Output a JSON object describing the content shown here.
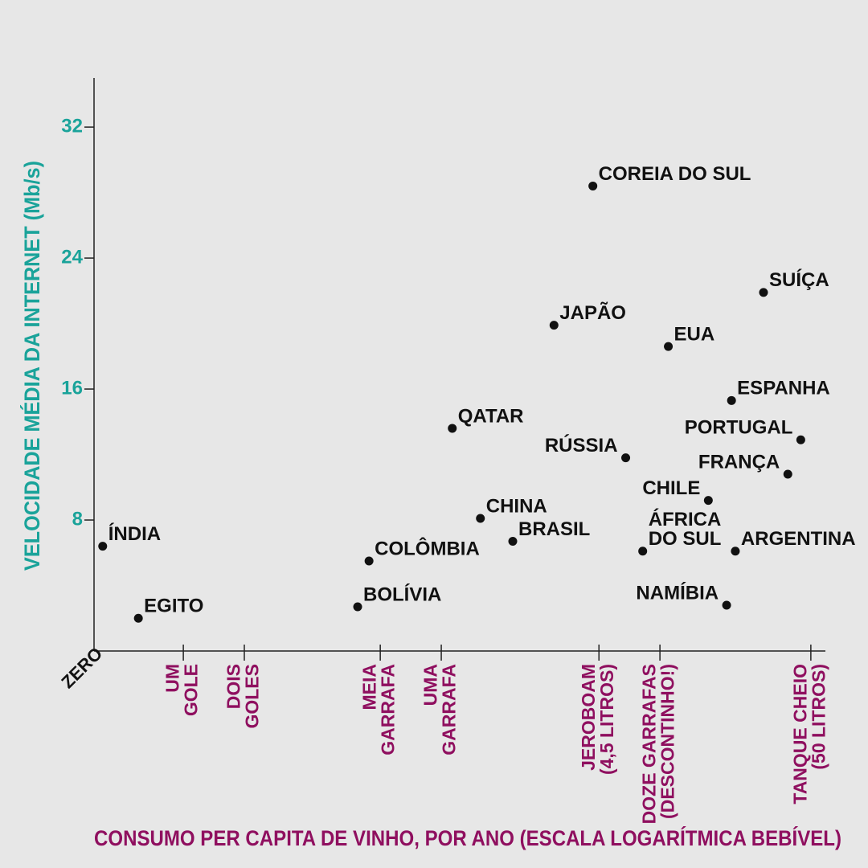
{
  "chart_data": {
    "type": "scatter",
    "x_label": "CONSUMO PER CAPITA DE VINHO, POR ANO (ESCALA LOGARÍTMICA BEBÍVEL)",
    "y_label": "VELOCIDADE MÉDIA DA INTERNET (Mb/s)",
    "x_origin_label": "ZERO",
    "x_scale": "log",
    "xlim": [
      0.0145,
      59
    ],
    "xticks": [
      {
        "value": 0.04,
        "label": [
          "UM",
          "GOLE"
        ]
      },
      {
        "value": 0.08,
        "label": [
          "DOIS",
          "GOLES"
        ]
      },
      {
        "value": 0.375,
        "label": [
          "MEIA",
          "GARRAFA"
        ]
      },
      {
        "value": 0.75,
        "label": [
          "UMA",
          "GARRAFA"
        ]
      },
      {
        "value": 4.5,
        "label": [
          "JEROBOAM",
          "(4,5 LITROS)"
        ]
      },
      {
        "value": 9,
        "label": [
          "DOZE GARRAFAS",
          "(DESCONTINHO!)"
        ]
      },
      {
        "value": 50,
        "label": [
          "TANQUE CHEIO",
          "(50 LITROS)"
        ]
      }
    ],
    "ylim": [
      0,
      35
    ],
    "yticks": [
      8,
      16,
      24,
      32
    ],
    "color": "#111111",
    "x_tick_color": "#8f0f5f",
    "y_tick_color": "#1aa39a",
    "labels": [
      [
        "ÍNDIA"
      ],
      [
        "EGITO"
      ],
      [
        "BOLÍVIA"
      ],
      [
        "COLÔMBIA"
      ],
      [
        "QATAR"
      ],
      [
        "CHINA"
      ],
      [
        "BRASIL"
      ],
      [
        "COREIA DO SUL"
      ],
      [
        "JAPÃO"
      ],
      [
        "RÚSSIA"
      ],
      [
        "EUA"
      ],
      [
        "ÁFRICA",
        "DO SUL"
      ],
      [
        "CHILE"
      ],
      [
        "NAMÍBIA"
      ],
      [
        "ESPANHA"
      ],
      [
        "ARGENTINA"
      ],
      [
        "SUÍÇA"
      ],
      [
        "FRANÇA"
      ],
      [
        "PORTUGAL"
      ]
    ],
    "x": [
      0.016,
      0.024,
      0.29,
      0.33,
      0.85,
      1.17,
      1.69,
      4.2,
      2.7,
      6.1,
      9.9,
      7.4,
      15.6,
      19.2,
      20.3,
      21.2,
      29.2,
      38.5,
      44.6
    ],
    "values": [
      6.4,
      2.0,
      2.7,
      5.5,
      13.6,
      8.1,
      6.7,
      28.4,
      19.9,
      11.8,
      18.6,
      6.1,
      9.2,
      2.8,
      15.3,
      6.1,
      21.9,
      10.8,
      12.9
    ]
  }
}
